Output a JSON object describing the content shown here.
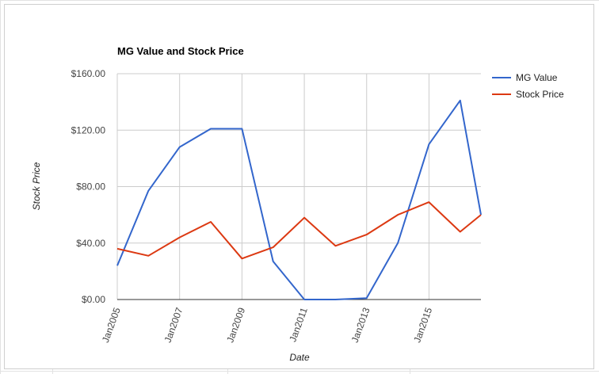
{
  "chart_data": {
    "type": "line",
    "title": "MG Value and Stock Price",
    "xlabel": "Date",
    "ylabel": "Stock Price",
    "x": [
      "2005-01",
      "2006-01",
      "2007-01",
      "2008-01",
      "2009-01",
      "2010-01",
      "2011-01",
      "2012-01",
      "2013-01",
      "2014-01",
      "2015-01",
      "2016-01",
      "2016-09"
    ],
    "x_ticks": [
      "Jan2005",
      "Jan2007",
      "Jan2009",
      "Jan2011",
      "Jan2013",
      "Jan2015"
    ],
    "y_ticks": [
      "$0.00",
      "$40.00",
      "$80.00",
      "$120.00",
      "$160.00"
    ],
    "ylim": [
      0,
      160
    ],
    "grid": true,
    "legend_position": "right",
    "series": [
      {
        "name": "MG Value",
        "color": "#3366cc",
        "values": [
          24,
          77,
          108,
          121,
          121,
          27,
          0,
          0,
          1,
          40,
          110,
          141,
          60
        ]
      },
      {
        "name": "Stock Price",
        "color": "#dc3912",
        "values": [
          36,
          31,
          44,
          55,
          29,
          37,
          58,
          38,
          46,
          60,
          69,
          48,
          60
        ]
      }
    ]
  }
}
